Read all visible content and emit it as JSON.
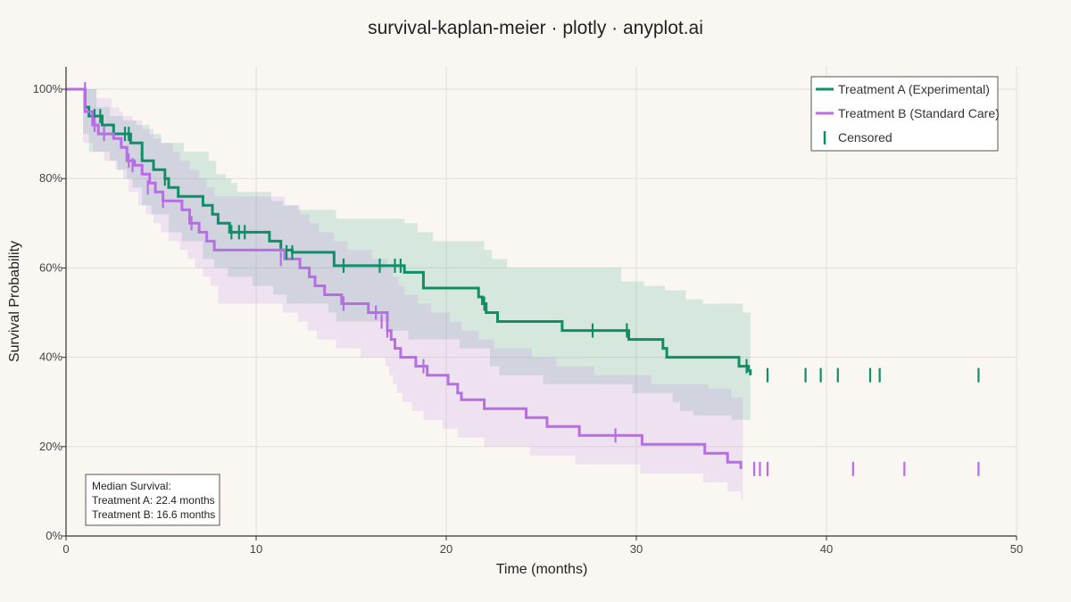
{
  "chart_data": {
    "type": "line",
    "title": "survival-kaplan-meier · plotly · anyplot.ai",
    "xlabel": "Time (months)",
    "ylabel": "Survival Probability",
    "xlim": [
      0,
      50
    ],
    "ylim": [
      0,
      1.05
    ],
    "x_ticks": [
      0,
      10,
      20,
      30,
      40,
      50
    ],
    "y_ticks": [
      0,
      0.2,
      0.4,
      0.6,
      0.8,
      1.0
    ],
    "y_tick_labels": [
      "0%",
      "20%",
      "40%",
      "60%",
      "80%",
      "100%"
    ],
    "grid": true,
    "legend_position": "top-right",
    "legend": {
      "censored_label": "Censored"
    },
    "series": [
      {
        "name": "Treatment A (Experimental)",
        "color": "#0d9068",
        "steps": [
          [
            0,
            1.0
          ],
          [
            1.0,
            0.96
          ],
          [
            1.2,
            0.94
          ],
          [
            1.9,
            0.92
          ],
          [
            2.5,
            0.9
          ],
          [
            3.4,
            0.88
          ],
          [
            4.0,
            0.84
          ],
          [
            4.6,
            0.82
          ],
          [
            5.2,
            0.8
          ],
          [
            5.4,
            0.78
          ],
          [
            5.9,
            0.76
          ],
          [
            7.2,
            0.74
          ],
          [
            7.7,
            0.72
          ],
          [
            8.0,
            0.7
          ],
          [
            8.6,
            0.68
          ],
          [
            10.7,
            0.66
          ],
          [
            11.3,
            0.64
          ],
          [
            11.9,
            0.635
          ],
          [
            14.1,
            0.605
          ],
          [
            17.8,
            0.59
          ],
          [
            18.8,
            0.555
          ],
          [
            21.7,
            0.535
          ],
          [
            21.9,
            0.52
          ],
          [
            22.1,
            0.5
          ],
          [
            22.7,
            0.48
          ],
          [
            26.1,
            0.46
          ],
          [
            29.6,
            0.44
          ],
          [
            31.4,
            0.42
          ],
          [
            31.6,
            0.4
          ],
          [
            35.4,
            0.38
          ],
          [
            35.9,
            0.37
          ],
          [
            36.0,
            0.36
          ]
        ],
        "ci_upper": [
          [
            0.9,
            1.0
          ],
          [
            1.0,
            1.0
          ],
          [
            1.6,
            0.96
          ],
          [
            2.3,
            0.94
          ],
          [
            3.0,
            0.93
          ],
          [
            3.7,
            0.92
          ],
          [
            4.4,
            0.9
          ],
          [
            5.0,
            0.88
          ],
          [
            6.2,
            0.86
          ],
          [
            7.5,
            0.84
          ],
          [
            7.9,
            0.81
          ],
          [
            8.4,
            0.8
          ],
          [
            8.7,
            0.79
          ],
          [
            9.0,
            0.77
          ],
          [
            10.8,
            0.75
          ],
          [
            11.4,
            0.74
          ],
          [
            12.2,
            0.73
          ],
          [
            14.2,
            0.71
          ],
          [
            17.8,
            0.7
          ],
          [
            18.5,
            0.68
          ],
          [
            19.3,
            0.66
          ],
          [
            22.0,
            0.64
          ],
          [
            22.4,
            0.62
          ],
          [
            23.2,
            0.6
          ],
          [
            29.2,
            0.57
          ],
          [
            30.4,
            0.56
          ],
          [
            31.5,
            0.55
          ],
          [
            32.6,
            0.53
          ],
          [
            33.5,
            0.52
          ],
          [
            35.6,
            0.5
          ]
        ],
        "ci_lower": [
          [
            0.9,
            0.9
          ],
          [
            1.2,
            0.86
          ],
          [
            2.3,
            0.84
          ],
          [
            2.7,
            0.82
          ],
          [
            3.2,
            0.8
          ],
          [
            3.5,
            0.78
          ],
          [
            4.0,
            0.74
          ],
          [
            4.5,
            0.72
          ],
          [
            5.4,
            0.68
          ],
          [
            6.1,
            0.66
          ],
          [
            7.2,
            0.62
          ],
          [
            7.8,
            0.6
          ],
          [
            8.5,
            0.58
          ],
          [
            9.8,
            0.56
          ],
          [
            10.9,
            0.54
          ],
          [
            11.6,
            0.52
          ],
          [
            13.8,
            0.5
          ],
          [
            14.2,
            0.48
          ],
          [
            17.0,
            0.46
          ],
          [
            18.0,
            0.44
          ],
          [
            20.7,
            0.42
          ],
          [
            22.3,
            0.38
          ],
          [
            22.8,
            0.36
          ],
          [
            25.1,
            0.34
          ],
          [
            29.8,
            0.32
          ],
          [
            31.9,
            0.3
          ],
          [
            32.3,
            0.28
          ],
          [
            33.0,
            0.27
          ],
          [
            35.0,
            0.26
          ],
          [
            36.0,
            0.26
          ]
        ],
        "censored": [
          [
            1.5,
            0.94
          ],
          [
            1.8,
            0.94
          ],
          [
            3.1,
            0.9
          ],
          [
            3.3,
            0.9
          ],
          [
            5.2,
            0.8
          ],
          [
            8.7,
            0.68
          ],
          [
            9.1,
            0.68
          ],
          [
            9.4,
            0.68
          ],
          [
            11.6,
            0.635
          ],
          [
            11.9,
            0.635
          ],
          [
            14.6,
            0.605
          ],
          [
            16.5,
            0.605
          ],
          [
            17.3,
            0.605
          ],
          [
            17.6,
            0.605
          ],
          [
            22.0,
            0.52
          ],
          [
            27.7,
            0.46
          ],
          [
            29.5,
            0.46
          ],
          [
            35.8,
            0.38
          ],
          [
            36.9,
            0.36
          ],
          [
            38.9,
            0.36
          ],
          [
            39.7,
            0.36
          ],
          [
            40.6,
            0.36
          ],
          [
            42.3,
            0.36
          ],
          [
            42.8,
            0.36
          ],
          [
            48.0,
            0.36
          ]
        ]
      },
      {
        "name": "Treatment B (Standard Care)",
        "color": "#b86ce6",
        "steps": [
          [
            0,
            1.0
          ],
          [
            1.0,
            0.95
          ],
          [
            1.4,
            0.92
          ],
          [
            1.7,
            0.9
          ],
          [
            2.5,
            0.89
          ],
          [
            2.9,
            0.87
          ],
          [
            3.2,
            0.84
          ],
          [
            3.6,
            0.83
          ],
          [
            4.0,
            0.81
          ],
          [
            4.4,
            0.79
          ],
          [
            4.7,
            0.77
          ],
          [
            5.1,
            0.75
          ],
          [
            6.1,
            0.73
          ],
          [
            6.5,
            0.7
          ],
          [
            7.0,
            0.68
          ],
          [
            7.4,
            0.66
          ],
          [
            7.8,
            0.64
          ],
          [
            11.5,
            0.62
          ],
          [
            12.3,
            0.6
          ],
          [
            12.8,
            0.58
          ],
          [
            13.1,
            0.56
          ],
          [
            13.6,
            0.54
          ],
          [
            14.5,
            0.52
          ],
          [
            15.9,
            0.5
          ],
          [
            16.9,
            0.48
          ],
          [
            16.9,
            0.46
          ],
          [
            17.1,
            0.44
          ],
          [
            17.3,
            0.42
          ],
          [
            17.6,
            0.4
          ],
          [
            18.4,
            0.38
          ],
          [
            19.0,
            0.36
          ],
          [
            20.1,
            0.34
          ],
          [
            20.6,
            0.32
          ],
          [
            20.8,
            0.305
          ],
          [
            22.0,
            0.285
          ],
          [
            24.2,
            0.265
          ],
          [
            25.3,
            0.245
          ],
          [
            27.0,
            0.225
          ],
          [
            30.3,
            0.205
          ],
          [
            33.6,
            0.185
          ],
          [
            34.8,
            0.165
          ],
          [
            35.5,
            0.15
          ]
        ],
        "ci_upper": [
          [
            0.9,
            1.0
          ],
          [
            1.0,
            1.0
          ],
          [
            1.6,
            0.98
          ],
          [
            2.4,
            0.96
          ],
          [
            2.8,
            0.95
          ],
          [
            3.0,
            0.94
          ],
          [
            3.5,
            0.93
          ],
          [
            4.0,
            0.91
          ],
          [
            4.6,
            0.89
          ],
          [
            5.0,
            0.88
          ],
          [
            5.6,
            0.86
          ],
          [
            6.0,
            0.84
          ],
          [
            6.5,
            0.82
          ],
          [
            7.0,
            0.8
          ],
          [
            7.4,
            0.78
          ],
          [
            7.8,
            0.76
          ],
          [
            11.5,
            0.74
          ],
          [
            12.3,
            0.72
          ],
          [
            12.8,
            0.7
          ],
          [
            13.3,
            0.68
          ],
          [
            14.1,
            0.66
          ],
          [
            14.8,
            0.64
          ],
          [
            16.1,
            0.62
          ],
          [
            16.9,
            0.6
          ],
          [
            17.2,
            0.58
          ],
          [
            17.5,
            0.56
          ],
          [
            17.8,
            0.54
          ],
          [
            18.5,
            0.52
          ],
          [
            19.2,
            0.5
          ],
          [
            20.2,
            0.48
          ],
          [
            20.8,
            0.46
          ],
          [
            21.7,
            0.44
          ],
          [
            22.5,
            0.42
          ],
          [
            24.5,
            0.4
          ],
          [
            25.8,
            0.38
          ],
          [
            27.8,
            0.36
          ],
          [
            30.8,
            0.34
          ],
          [
            33.8,
            0.33
          ],
          [
            35.0,
            0.31
          ],
          [
            35.6,
            0.3
          ]
        ],
        "ci_lower": [
          [
            0.9,
            0.88
          ],
          [
            1.4,
            0.86
          ],
          [
            2.0,
            0.84
          ],
          [
            2.6,
            0.82
          ],
          [
            3.0,
            0.8
          ],
          [
            3.3,
            0.77
          ],
          [
            3.8,
            0.74
          ],
          [
            4.2,
            0.72
          ],
          [
            4.6,
            0.7
          ],
          [
            5.0,
            0.68
          ],
          [
            5.4,
            0.66
          ],
          [
            6.0,
            0.64
          ],
          [
            6.4,
            0.62
          ],
          [
            6.8,
            0.6
          ],
          [
            7.2,
            0.58
          ],
          [
            7.6,
            0.56
          ],
          [
            8.0,
            0.52
          ],
          [
            11.4,
            0.5
          ],
          [
            12.2,
            0.48
          ],
          [
            12.7,
            0.46
          ],
          [
            13.2,
            0.44
          ],
          [
            14.2,
            0.42
          ],
          [
            15.5,
            0.4
          ],
          [
            16.8,
            0.38
          ],
          [
            17.0,
            0.36
          ],
          [
            17.2,
            0.34
          ],
          [
            17.4,
            0.32
          ],
          [
            17.7,
            0.3
          ],
          [
            18.2,
            0.28
          ],
          [
            18.8,
            0.26
          ],
          [
            19.8,
            0.24
          ],
          [
            20.6,
            0.22
          ],
          [
            22.0,
            0.2
          ],
          [
            24.4,
            0.18
          ],
          [
            26.8,
            0.16
          ],
          [
            30.2,
            0.14
          ],
          [
            33.5,
            0.12
          ],
          [
            34.8,
            0.1
          ],
          [
            35.5,
            0.08
          ],
          [
            35.6,
            0.08
          ]
        ],
        "censored": [
          [
            1.0,
            1.0
          ],
          [
            1.5,
            0.92
          ],
          [
            2.0,
            0.9
          ],
          [
            3.3,
            0.84
          ],
          [
            3.5,
            0.83
          ],
          [
            4.3,
            0.78
          ],
          [
            5.1,
            0.75
          ],
          [
            6.6,
            0.7
          ],
          [
            11.3,
            0.62
          ],
          [
            14.6,
            0.52
          ],
          [
            16.3,
            0.5
          ],
          [
            16.6,
            0.48
          ],
          [
            16.9,
            0.46
          ],
          [
            18.8,
            0.38
          ],
          [
            28.9,
            0.225
          ],
          [
            36.2,
            0.15
          ],
          [
            36.5,
            0.15
          ],
          [
            36.9,
            0.15
          ],
          [
            41.4,
            0.15
          ],
          [
            44.1,
            0.15
          ],
          [
            48.0,
            0.15
          ]
        ]
      }
    ]
  },
  "median_box": {
    "heading": "Median Survival:",
    "line_a": "Treatment A: 22.4 months",
    "line_b": "Treatment B: 16.6 months"
  },
  "colors": {
    "background": "#faf7f2",
    "grid": "#e2dfd8",
    "axis": "#333333"
  }
}
